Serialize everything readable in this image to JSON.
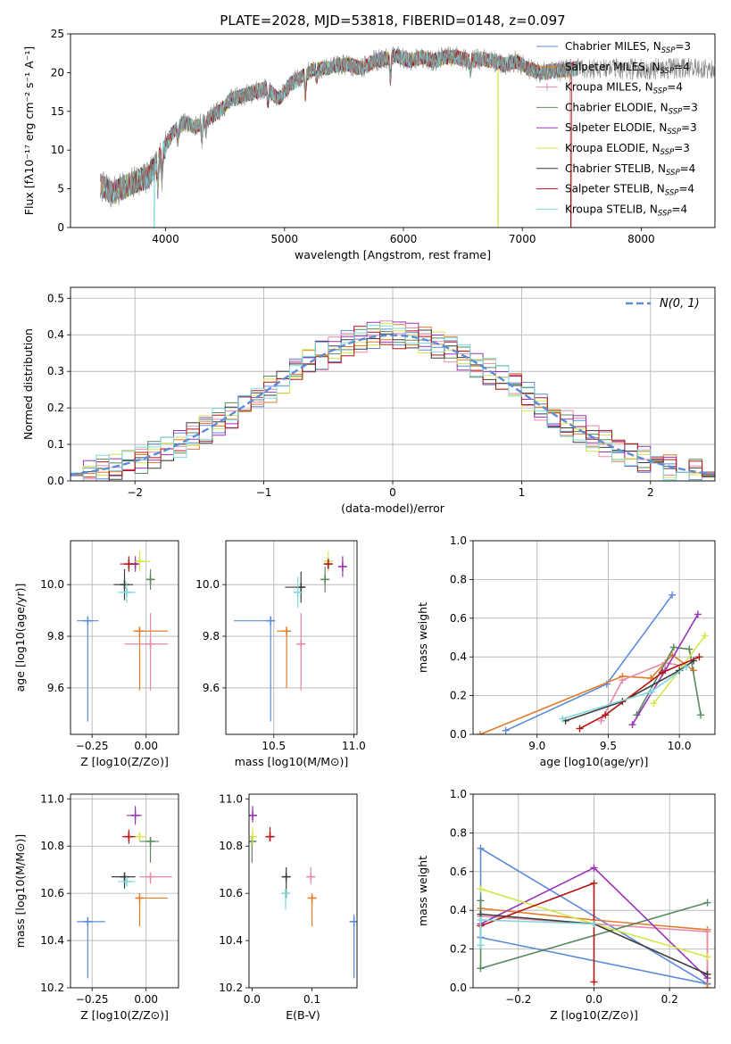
{
  "figure": {
    "title": "PLATE=2028, MJD=53818, FIBERID=0148, z=0.097"
  },
  "colors": {
    "Chabrier MILES": "#5b8bd9",
    "Salpeter MILES": "#e37c2a",
    "Kroupa MILES": "#e889a8",
    "Chabrier ELODIE": "#5a8a5e",
    "Salpeter ELODIE": "#9b34b8",
    "Kroupa ELODIE": "#d3e64a",
    "Chabrier STELIB": "#3c3c3c",
    "Salpeter STELIB": "#b31515",
    "Kroupa STELIB": "#7fd8dc",
    "normal_curve": "#5b8bd9",
    "grid": "#b0b0b0"
  },
  "chart_data": [
    {
      "id": "spectrum",
      "type": "line",
      "title": "PLATE=2028, MJD=53818, FIBERID=0148, z=0.097",
      "xlabel": "wavelength [Angstrom, rest frame]",
      "ylabel": "Flux [fλ10⁻¹⁷ erg cm⁻² s⁻¹ A⁻¹]",
      "xlim": [
        3200,
        8620
      ],
      "ylim": [
        0,
        25
      ],
      "xticks": [
        4000,
        5000,
        6000,
        7000,
        8000
      ],
      "yticks": [
        0,
        5,
        10,
        15,
        20,
        25
      ],
      "grid": false,
      "legend_position": "top-right",
      "data_shape": {
        "x": [
          3450,
          3550,
          3650,
          3750,
          3850,
          3950,
          4050,
          4150,
          4250,
          4350,
          4450,
          4550,
          4650,
          4750,
          4850,
          4950,
          5050,
          5150,
          5250,
          5350,
          5450,
          5550,
          5650,
          5750,
          5850,
          5950,
          6050,
          6150,
          6250,
          6350,
          6450,
          6550,
          6650,
          6750,
          6850,
          6950,
          7050,
          7150,
          7250,
          7350,
          7450
        ],
        "y": [
          5.5,
          4.5,
          5.2,
          6.0,
          6.5,
          9.0,
          12.0,
          13.5,
          13.0,
          14.0,
          15.0,
          16.5,
          17.0,
          17.5,
          18.0,
          16.5,
          18.5,
          19.5,
          20.5,
          20.5,
          21.0,
          21.0,
          20.5,
          21.5,
          21.8,
          22.2,
          21.5,
          22.0,
          21.5,
          22.0,
          22.0,
          21.5,
          21.8,
          21.5,
          21.0,
          21.5,
          20.5,
          20.0,
          20.2,
          20.3,
          20.5
        ]
      },
      "series": [
        {
          "name": "Chabrier MILES, N_SSP=3",
          "n_ssp": 3
        },
        {
          "name": "Salpeter MILES, N_SSP=4",
          "n_ssp": 4
        },
        {
          "name": "Kroupa MILES, N_SSP=4",
          "n_ssp": 4
        },
        {
          "name": "Chabrier ELODIE, N_SSP=3",
          "n_ssp": 3
        },
        {
          "name": "Salpeter ELODIE, N_SSP=3",
          "n_ssp": 3
        },
        {
          "name": "Kroupa ELODIE, N_SSP=3",
          "n_ssp": 3
        },
        {
          "name": "Chabrier STELIB, N_SSP=4",
          "n_ssp": 4
        },
        {
          "name": "Salpeter STELIB, N_SSP=4",
          "n_ssp": 4
        },
        {
          "name": "Kroupa STELIB, N_SSP=4",
          "n_ssp": 4
        }
      ],
      "legend_labels": [
        [
          "Chabrier MILES, N",
          "SSP",
          "=3"
        ],
        [
          "Salpeter MILES, N",
          "SSP",
          "=4"
        ],
        [
          "Kroupa MILES, N",
          "SSP",
          "=4"
        ],
        [
          "Chabrier ELODIE, N",
          "SSP",
          "=3"
        ],
        [
          "Salpeter ELODIE, N",
          "SSP",
          "=3"
        ],
        [
          "Kroupa ELODIE, N",
          "SSP",
          "=3"
        ],
        [
          "Chabrier STELIB, N",
          "SSP",
          "=4"
        ],
        [
          "Salpeter STELIB, N",
          "SSP",
          "=4"
        ],
        [
          "Kroupa STELIB, N",
          "SSP",
          "=4"
        ]
      ]
    },
    {
      "id": "residuals",
      "type": "histogram",
      "xlabel": "(data-model)/error",
      "ylabel": "Normed distribution",
      "xlim": [
        -2.5,
        2.5
      ],
      "ylim": [
        0,
        0.53
      ],
      "xticks": [
        -2,
        -1,
        0,
        1,
        2
      ],
      "yticks": [
        0.0,
        0.1,
        0.2,
        0.3,
        0.4,
        0.5
      ],
      "grid": true,
      "legend_position": "top-right",
      "legend_label": "N(0, 1)",
      "bin_width": 0.1,
      "normal_curve": {
        "mu": 0,
        "sigma": 1
      }
    },
    {
      "id": "z_age",
      "type": "errorbar",
      "xlabel": "Z [log10(Z/Z⊙)]",
      "ylabel": "age  [log10(age/yr)]",
      "xlim": [
        -0.35,
        0.15
      ],
      "ylim": [
        9.42,
        10.17
      ],
      "xticks": [
        -0.25,
        0.0
      ],
      "yticks": [
        9.6,
        9.8,
        10.0
      ],
      "grid": true,
      "points": [
        {
          "series": "Chabrier MILES",
          "x": -0.27,
          "xerr": [
            0.05,
            0.05
          ],
          "y": 9.86,
          "yerr": [
            0.39,
            0.0
          ]
        },
        {
          "series": "Salpeter MILES",
          "x": -0.03,
          "xerr": [
            0.03,
            0.13
          ],
          "y": 9.82,
          "yerr": [
            0.23,
            0.0
          ]
        },
        {
          "series": "Kroupa MILES",
          "x": 0.02,
          "xerr": [
            0.12,
            0.08
          ],
          "y": 9.77,
          "yerr": [
            0.18,
            0.12
          ]
        },
        {
          "series": "Chabrier ELODIE",
          "x": 0.02,
          "xerr": [
            0.02,
            0.02
          ],
          "y": 10.02,
          "yerr": [
            0.04,
            0.04
          ]
        },
        {
          "series": "Salpeter ELODIE",
          "x": -0.05,
          "xerr": [
            0.02,
            0.02
          ],
          "y": 10.08,
          "yerr": [
            0.03,
            0.03
          ]
        },
        {
          "series": "Kroupa ELODIE",
          "x": -0.03,
          "xerr": [
            0.02,
            0.05
          ],
          "y": 10.09,
          "yerr": [
            0.04,
            0.04
          ]
        },
        {
          "series": "Chabrier STELIB",
          "x": -0.1,
          "xerr": [
            0.05,
            0.04
          ],
          "y": 10.0,
          "yerr": [
            0.06,
            0.06
          ]
        },
        {
          "series": "Salpeter STELIB",
          "x": -0.08,
          "xerr": [
            0.04,
            0.04
          ],
          "y": 10.08,
          "yerr": [
            0.03,
            0.03
          ]
        },
        {
          "series": "Kroupa STELIB",
          "x": -0.09,
          "xerr": [
            0.04,
            0.04
          ],
          "y": 9.97,
          "yerr": [
            0.04,
            0.04
          ]
        }
      ]
    },
    {
      "id": "mass_age",
      "type": "errorbar",
      "xlabel": "mass [log10(M/M⊙)]",
      "ylabel": "",
      "xlim": [
        10.2,
        11.02
      ],
      "ylim": [
        9.42,
        10.17
      ],
      "xticks": [
        10.5,
        11.0
      ],
      "yticks": [
        9.6,
        9.8,
        10.0
      ],
      "grid": true,
      "points": [
        {
          "series": "Chabrier MILES",
          "x": 10.48,
          "xerr": [
            0.23,
            0.02
          ],
          "y": 9.86,
          "yerr": [
            0.39,
            0.0
          ]
        },
        {
          "series": "Salpeter MILES",
          "x": 10.58,
          "xerr": [
            0.06,
            0.0
          ],
          "y": 9.82,
          "yerr": [
            0.22,
            0.0
          ]
        },
        {
          "series": "Kroupa MILES",
          "x": 10.67,
          "xerr": [
            0.02,
            0.02
          ],
          "y": 9.77,
          "yerr": [
            0.18,
            0.12
          ]
        },
        {
          "series": "Chabrier ELODIE",
          "x": 10.82,
          "xerr": [
            0.02,
            0.0
          ],
          "y": 10.02,
          "yerr": [
            0.05,
            0.05
          ]
        },
        {
          "series": "Salpeter ELODIE",
          "x": 10.93,
          "xerr": [
            0.02,
            0.02
          ],
          "y": 10.07,
          "yerr": [
            0.04,
            0.04
          ]
        },
        {
          "series": "Kroupa ELODIE",
          "x": 10.84,
          "xerr": [
            0.01,
            0.02
          ],
          "y": 10.09,
          "yerr": [
            0.04,
            0.04
          ]
        },
        {
          "series": "Chabrier STELIB",
          "x": 10.67,
          "xerr": [
            0.1,
            0.02
          ],
          "y": 9.99,
          "yerr": [
            0.06,
            0.06
          ]
        },
        {
          "series": "Salpeter STELIB",
          "x": 10.84,
          "xerr": [
            0.02,
            0.02
          ],
          "y": 10.08,
          "yerr": [
            0.02,
            0.02
          ]
        },
        {
          "series": "Kroupa STELIB",
          "x": 10.65,
          "xerr": [
            0.02,
            0.02
          ],
          "y": 9.97,
          "yerr": [
            0.06,
            0.06
          ]
        }
      ]
    },
    {
      "id": "age_weight",
      "type": "line",
      "xlabel": "age  [log10(age/yr)]",
      "ylabel": "mass weight",
      "xlim": [
        8.55,
        10.25
      ],
      "ylim": [
        0,
        1
      ],
      "xticks": [
        9.0,
        9.5,
        10.0
      ],
      "yticks": [
        0.0,
        0.2,
        0.4,
        0.6,
        0.8,
        1.0
      ],
      "grid": true,
      "series": [
        {
          "name": "Chabrier MILES",
          "x": [
            8.78,
            9.49,
            9.95
          ],
          "y": [
            0.02,
            0.26,
            0.72
          ]
        },
        {
          "name": "Salpeter MILES",
          "x": [
            8.6,
            9.6,
            9.8,
            9.95,
            10.1
          ],
          "y": [
            0.0,
            0.3,
            0.29,
            0.41,
            0.33
          ]
        },
        {
          "name": "Kroupa MILES",
          "x": [
            9.45,
            9.6,
            9.9,
            10.05
          ],
          "y": [
            0.07,
            0.28,
            0.37,
            0.35
          ]
        },
        {
          "name": "Chabrier ELODIE",
          "x": [
            9.7,
            9.96,
            10.07,
            10.15
          ],
          "y": [
            0.1,
            0.45,
            0.44,
            0.1
          ]
        },
        {
          "name": "Salpeter ELODIE",
          "x": [
            9.67,
            9.9,
            10.13
          ],
          "y": [
            0.05,
            0.33,
            0.62
          ]
        },
        {
          "name": "Kroupa ELODIE",
          "x": [
            9.82,
            10.0,
            10.18
          ],
          "y": [
            0.16,
            0.33,
            0.51
          ]
        },
        {
          "name": "Chabrier STELIB",
          "x": [
            9.2,
            9.6,
            10.0,
            10.1
          ],
          "y": [
            0.07,
            0.17,
            0.33,
            0.38
          ]
        },
        {
          "name": "Salpeter STELIB",
          "x": [
            9.3,
            9.48,
            9.88,
            10.14
          ],
          "y": [
            0.03,
            0.1,
            0.32,
            0.4
          ]
        },
        {
          "name": "Kroupa STELIB",
          "x": [
            9.18,
            9.8,
            10.05
          ],
          "y": [
            0.08,
            0.22,
            0.35
          ]
        }
      ]
    },
    {
      "id": "z_mass",
      "type": "errorbar",
      "xlabel": "Z [log10(Z/Z⊙)]",
      "ylabel": "mass [log10(M/M⊙)]",
      "xlim": [
        -0.35,
        0.15
      ],
      "ylim": [
        10.2,
        11.02
      ],
      "xticks": [
        -0.25,
        0.0
      ],
      "yticks": [
        10.2,
        10.4,
        10.6,
        10.8,
        11.0
      ],
      "grid": true,
      "points": [
        {
          "series": "Chabrier MILES",
          "x": -0.27,
          "xerr": [
            0.05,
            0.08
          ],
          "y": 10.48,
          "yerr": [
            0.24,
            0.0
          ]
        },
        {
          "series": "Salpeter MILES",
          "x": -0.03,
          "xerr": [
            0.0,
            0.13
          ],
          "y": 10.58,
          "yerr": [
            0.12,
            0.0
          ]
        },
        {
          "series": "Kroupa MILES",
          "x": 0.02,
          "xerr": [
            0.05,
            0.1
          ],
          "y": 10.67,
          "yerr": [
            0.03,
            0.0
          ]
        },
        {
          "series": "Chabrier ELODIE",
          "x": 0.02,
          "xerr": [
            0.05,
            0.04
          ],
          "y": 10.82,
          "yerr": [
            0.09,
            0.0
          ]
        },
        {
          "series": "Salpeter ELODIE",
          "x": -0.05,
          "xerr": [
            0.04,
            0.03
          ],
          "y": 10.93,
          "yerr": [
            0.04,
            0.04
          ]
        },
        {
          "series": "Kroupa ELODIE",
          "x": -0.03,
          "xerr": [
            0.02,
            0.03
          ],
          "y": 10.84,
          "yerr": [
            0.0,
            0.0
          ]
        },
        {
          "series": "Chabrier STELIB",
          "x": -0.1,
          "xerr": [
            0.06,
            0.05
          ],
          "y": 10.67,
          "yerr": [
            0.05,
            0.0
          ]
        },
        {
          "series": "Salpeter STELIB",
          "x": -0.08,
          "xerr": [
            0.03,
            0.03
          ],
          "y": 10.84,
          "yerr": [
            0.03,
            0.03
          ]
        },
        {
          "series": "Kroupa STELIB",
          "x": -0.09,
          "xerr": [
            0.04,
            0.04
          ],
          "y": 10.65,
          "yerr": [
            0.02,
            0.0
          ]
        }
      ]
    },
    {
      "id": "ebv_mass",
      "type": "errorbar",
      "xlabel": "E(B-V)",
      "ylabel": "",
      "xlim": [
        -0.005,
        0.175
      ],
      "ylim": [
        10.2,
        11.02
      ],
      "xticks": [
        0.0,
        0.1
      ],
      "yticks": [
        10.2,
        10.4,
        10.6,
        10.8,
        11.0
      ],
      "grid": false,
      "points": [
        {
          "series": "Chabrier MILES",
          "x": 0.17,
          "xerr": [
            0,
            0
          ],
          "y": 10.48,
          "yerr": [
            0.24,
            0.03
          ]
        },
        {
          "series": "Salpeter MILES",
          "x": 0.1,
          "xerr": [
            0,
            0
          ],
          "y": 10.58,
          "yerr": [
            0.12,
            0.0
          ]
        },
        {
          "series": "Kroupa MILES",
          "x": 0.098,
          "xerr": [
            0,
            0
          ],
          "y": 10.67,
          "yerr": [
            0.03,
            0.04
          ]
        },
        {
          "series": "Chabrier ELODIE",
          "x": 0.0,
          "xerr": [
            0,
            0
          ],
          "y": 10.82,
          "yerr": [
            0.09,
            0.0
          ]
        },
        {
          "series": "Salpeter ELODIE",
          "x": 0.001,
          "xerr": [
            0,
            0
          ],
          "y": 10.93,
          "yerr": [
            0.03,
            0.04
          ]
        },
        {
          "series": "Kroupa ELODIE",
          "x": 0.001,
          "xerr": [
            0,
            0
          ],
          "y": 10.84,
          "yerr": [
            0.04,
            0.04
          ]
        },
        {
          "series": "Chabrier STELIB",
          "x": 0.057,
          "xerr": [
            0,
            0
          ],
          "y": 10.67,
          "yerr": [
            0.09,
            0.04
          ]
        },
        {
          "series": "Salpeter STELIB",
          "x": 0.03,
          "xerr": [
            0,
            0
          ],
          "y": 10.84,
          "yerr": [
            0.02,
            0.04
          ]
        },
        {
          "series": "Kroupa STELIB",
          "x": 0.056,
          "xerr": [
            0,
            0
          ],
          "y": 10.6,
          "yerr": [
            0.07,
            0.0
          ]
        }
      ]
    },
    {
      "id": "z_weight",
      "type": "line",
      "xlabel": "Z [log10(Z/Z⊙)]",
      "ylabel": "mass weight",
      "xlim": [
        -0.32,
        0.32
      ],
      "ylim": [
        0,
        1
      ],
      "xticks": [
        -0.2,
        0.0,
        0.2
      ],
      "yticks": [
        0.0,
        0.2,
        0.4,
        0.6,
        0.8,
        1.0
      ],
      "grid": true,
      "series": [
        {
          "name": "Chabrier MILES",
          "x": [
            0.3,
            -0.3,
            -0.3,
            0.3,
            0.3
          ],
          "y": [
            0.02,
            0.26,
            0.72,
            0.02,
            0.02
          ]
        },
        {
          "name": "Salpeter MILES",
          "x": [
            -0.3,
            0.0,
            0.3,
            0.3
          ],
          "y": [
            0.41,
            0.35,
            0.3,
            0.0
          ]
        },
        {
          "name": "Kroupa MILES",
          "x": [
            -0.3,
            0.3,
            0.3
          ],
          "y": [
            0.37,
            0.29,
            0.07
          ]
        },
        {
          "name": "Chabrier ELODIE",
          "x": [
            -0.3,
            -0.3,
            0.3
          ],
          "y": [
            0.45,
            0.1,
            0.44
          ]
        },
        {
          "name": "Salpeter ELODIE",
          "x": [
            -0.3,
            0.0,
            0.3
          ],
          "y": [
            0.33,
            0.62,
            0.05
          ]
        },
        {
          "name": "Kroupa ELODIE",
          "x": [
            -0.3,
            0.0,
            0.3
          ],
          "y": [
            0.51,
            0.33,
            0.16
          ]
        },
        {
          "name": "Chabrier STELIB",
          "x": [
            -0.3,
            0.0,
            0.3
          ],
          "y": [
            0.38,
            0.33,
            0.07
          ]
        },
        {
          "name": "Salpeter STELIB",
          "x": [
            -0.3,
            0.0,
            0.0
          ],
          "y": [
            0.32,
            0.54,
            0.03
          ]
        },
        {
          "name": "Kroupa STELIB",
          "x": [
            -0.3,
            -0.3,
            0.0
          ],
          "y": [
            0.22,
            0.35,
            0.33
          ]
        }
      ]
    }
  ]
}
